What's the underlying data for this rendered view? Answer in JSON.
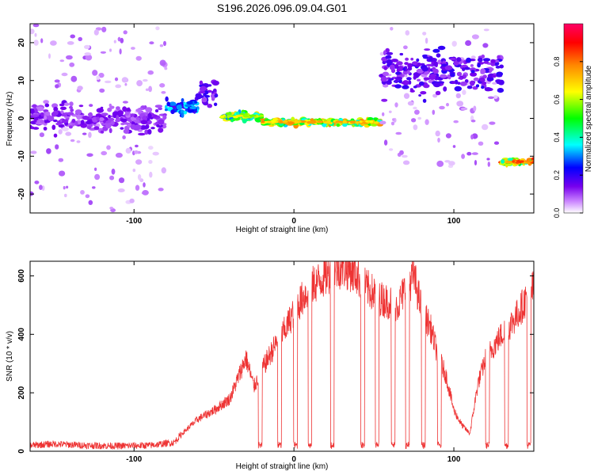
{
  "title": "S196.2026.096.09.04.G01",
  "chart_data": [
    {
      "type": "heatmap",
      "xlabel": "Height of straight line (km)",
      "ylabel": "Frequency (Hz)",
      "xlim": [
        -165,
        150
      ],
      "ylim": [
        -25,
        25
      ],
      "xticks": [
        -100,
        0,
        100
      ],
      "xtick_labels": [
        "-100",
        "0",
        "100"
      ],
      "yticks": [
        -20,
        -10,
        0,
        10,
        20
      ],
      "ytick_labels": [
        "-20",
        "-10",
        "0",
        "10",
        "20"
      ],
      "colorbar": {
        "label": "Normalized spectral amplitude",
        "range": [
          0,
          1
        ],
        "ticks": [
          0.0,
          0.2,
          0.4,
          0.6,
          0.8
        ],
        "tick_labels": [
          "0.0",
          "0.2",
          "0.4",
          "0.6",
          "0.8"
        ],
        "colors": [
          "#ffffff",
          "#cc88ff",
          "#7700ee",
          "#0000ff",
          "#00ffff",
          "#00ff00",
          "#ffff00",
          "#ff8800",
          "#ff0000",
          "#ff0066"
        ]
      },
      "segments": [
        {
          "x": [
            -165,
            -80
          ],
          "freq_center": 0,
          "freq_spread": 5,
          "amplitude": 0.15,
          "noise_spread": 25
        },
        {
          "x": [
            -80,
            -60
          ],
          "freq_center": 3,
          "freq_spread": 3,
          "amplitude": 0.35
        },
        {
          "x": [
            -60,
            -48
          ],
          "freq_center": 7,
          "freq_spread": 5,
          "amplitude": 0.2
        },
        {
          "x": [
            -45,
            -20
          ],
          "freq_center": 0.5,
          "freq_spread": 1.5,
          "amplitude": 0.65
        },
        {
          "x": [
            -20,
            55
          ],
          "freq_center": -1,
          "freq_spread": 1.2,
          "amplitude": 0.75
        },
        {
          "x": [
            55,
            130
          ],
          "freq_center": 12,
          "freq_spread": 8,
          "amplitude": 0.2,
          "noise_spread": 25
        },
        {
          "x": [
            130,
            150
          ],
          "freq_center": -11.5,
          "freq_spread": 1.2,
          "amplitude": 0.85
        }
      ]
    },
    {
      "type": "line",
      "xlabel": "Height of straight line (km)",
      "ylabel": "SNR (10 * v/v)",
      "xlim": [
        -165,
        150
      ],
      "ylim": [
        0,
        650
      ],
      "xticks": [
        -100,
        0,
        100
      ],
      "xtick_labels": [
        "-100",
        "0",
        "100"
      ],
      "yticks": [
        0,
        200,
        400,
        600
      ],
      "ytick_labels": [
        "0",
        "200",
        "400",
        "600"
      ],
      "color": "#ee3333",
      "series": [
        {
          "name": "SNR",
          "x": [
            -165,
            -150,
            -130,
            -110,
            -90,
            -75,
            -70,
            -60,
            -50,
            -40,
            -35,
            -30,
            -25,
            -20,
            -15,
            -10,
            -5,
            0,
            5,
            10,
            15,
            20,
            25,
            30,
            35,
            40,
            45,
            50,
            55,
            60,
            65,
            70,
            75,
            80,
            85,
            90,
            95,
            100,
            105,
            110,
            115,
            120,
            125,
            130,
            135,
            140,
            145,
            150
          ],
          "y": [
            20,
            25,
            20,
            18,
            20,
            30,
            60,
            110,
            140,
            180,
            250,
            320,
            220,
            280,
            330,
            380,
            420,
            480,
            520,
            560,
            580,
            600,
            620,
            630,
            620,
            600,
            560,
            540,
            520,
            510,
            500,
            560,
            600,
            480,
            430,
            330,
            260,
            140,
            90,
            60,
            230,
            320,
            360,
            400,
            430,
            470,
            520,
            560
          ],
          "dropouts": [
            -21,
            -9,
            1,
            10,
            24,
            43,
            52,
            62,
            71,
            81,
            91,
            121,
            133,
            147
          ]
        }
      ]
    }
  ]
}
